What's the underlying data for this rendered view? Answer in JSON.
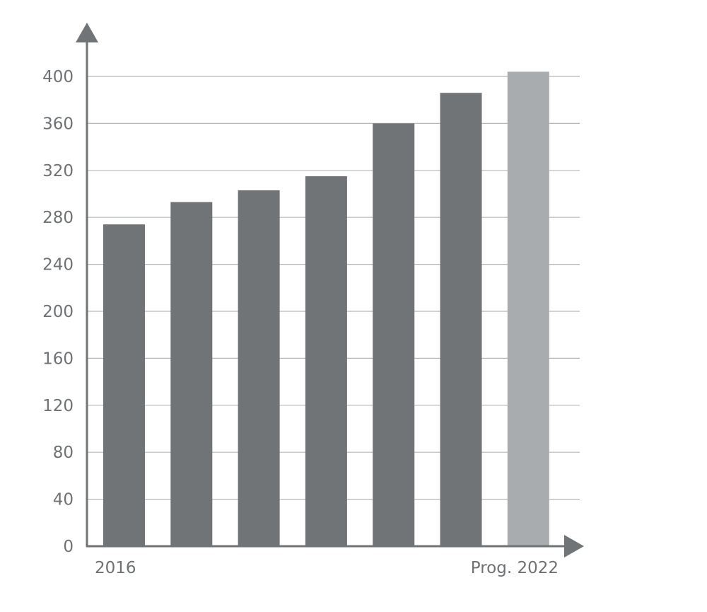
{
  "chart_data": {
    "type": "bar",
    "categories": [
      "2016",
      "",
      "",
      "",
      "",
      "",
      "Prog. 2022"
    ],
    "values": [
      274,
      293,
      303,
      315,
      360,
      386,
      404
    ],
    "forecast_index": 6,
    "colors": {
      "actual": "#717476",
      "forecast": "#a9acae",
      "grid": "#b5b7b9",
      "axis": "#717476",
      "text": "#6f7274"
    },
    "ylim": [
      0,
      400
    ],
    "yticks": [
      0,
      40,
      80,
      120,
      160,
      200,
      240,
      280,
      320,
      360,
      400
    ],
    "y_tick_labels": [
      "0",
      "40",
      "80",
      "120",
      "160",
      "200",
      "240",
      "280",
      "320",
      "360",
      "400"
    ],
    "grid": true,
    "legend": "none",
    "title": "",
    "xlabel": "",
    "ylabel": ""
  }
}
